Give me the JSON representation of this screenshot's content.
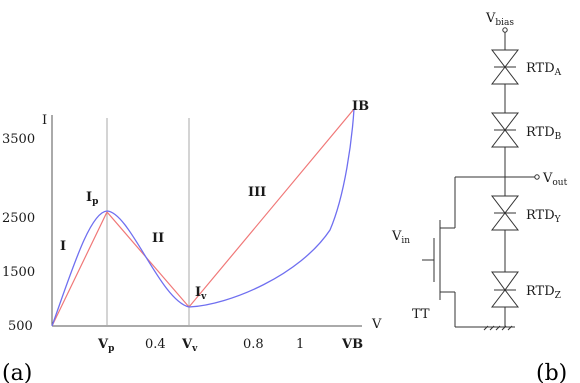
{
  "panel_a": {
    "caption": "(a)",
    "y_axis_label": "I",
    "x_axis_label": "V",
    "y_ticks": [
      "500",
      "1500",
      "2500",
      "3500"
    ],
    "x_ticks": [
      "0.4",
      "0.8",
      "1"
    ],
    "x_special": {
      "vp_main": "V",
      "vp_sub": "p",
      "vv_main": "V",
      "vv_sub": "v",
      "vb": "VB"
    },
    "point_labels": {
      "ip_main": "I",
      "ip_sub": "p",
      "iv_main": "I",
      "iv_sub": "v",
      "ib": "IB"
    },
    "regions": [
      "I",
      "II",
      "III"
    ],
    "colors": {
      "iv_curve": "#6f6ff0",
      "pwl": "#f07878",
      "axis": "#555555",
      "guide": "#aaaaaa"
    },
    "chart_data": {
      "type": "line",
      "xlabel": "V",
      "ylabel": "I",
      "xlim": [
        0,
        1.2
      ],
      "ylim": [
        0,
        3500
      ],
      "series": [
        {
          "x": [
            0,
            0.2,
            0.4,
            0.55,
            0.7,
            0.85,
            1.0,
            1.2
          ],
          "values": [
            0,
            2050,
            950,
            330,
            700,
            1200,
            2000,
            3450
          ]
        },
        {
          "x": [
            0,
            0.2,
            0.55,
            1.2
          ],
          "values": [
            0,
            2050,
            330,
            3450
          ]
        }
      ]
    }
  },
  "panel_b": {
    "caption": "(b)",
    "bias_main": "V",
    "bias_sub": "bias",
    "out_main": "V",
    "out_sub": "out",
    "in_main": "V",
    "in_sub": "in",
    "transistor": "TT",
    "rtds": [
      {
        "main": "RTD",
        "sub": "A"
      },
      {
        "main": "RTD",
        "sub": "B"
      },
      {
        "main": "RTD",
        "sub": "Y"
      },
      {
        "main": "RTD",
        "sub": "Z"
      }
    ]
  }
}
